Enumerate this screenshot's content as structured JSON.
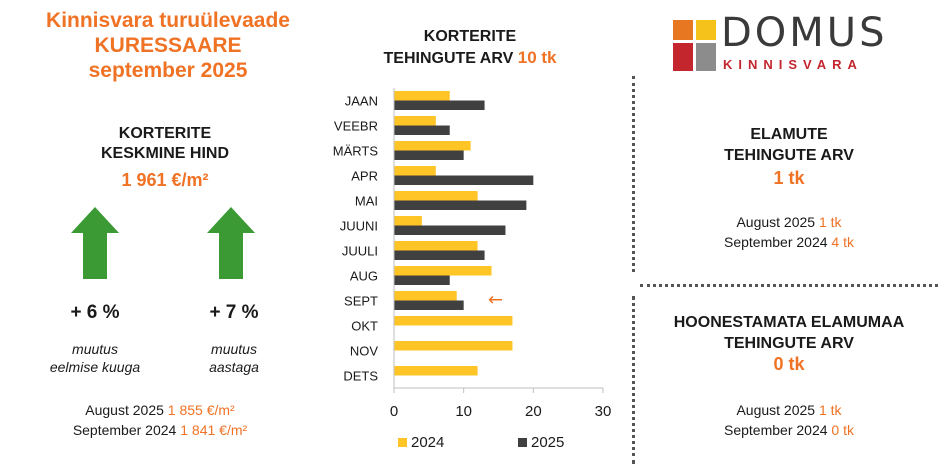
{
  "title": {
    "line1": "Kinnisvara turuülevaade",
    "line2": "KURESSAARE",
    "line3": "september 2025"
  },
  "apartment_price": {
    "heading_line1": "KORTERITE",
    "heading_line2": "KESKMINE HIND",
    "value": "1 961 €/m²",
    "month_change": "+ 6 %",
    "month_change_fraction": 0.06,
    "month_note_line1": "muutus",
    "month_note_line2": "eelmise kuuga",
    "year_change": "+ 7 %",
    "year_change_fraction": 0.07,
    "year_note_line1": "muutus",
    "year_note_line2": "aastaga",
    "compare": [
      {
        "label": "August 2025",
        "value": "1 855 €/m²"
      },
      {
        "label": "September 2024",
        "value": "1 841 €/m²"
      }
    ]
  },
  "chart_title": {
    "line1": "KORTERITE",
    "line2": "TEHINGUTE ARV",
    "count": "10 tk"
  },
  "logo": {
    "word": "DOMUS",
    "sub": "KINNISVARA"
  },
  "houses": {
    "heading_line1": "ELAMUTE",
    "heading_line2": "TEHINGUTE ARV",
    "value": "1 tk",
    "compare": [
      {
        "label": "August 2025",
        "value": "1 tk"
      },
      {
        "label": "September 2024",
        "value": "4 tk"
      }
    ]
  },
  "land": {
    "heading_line1": "HOONESTAMATA ELAMUMAA",
    "heading_line2": "TEHINGUTE ARV",
    "value": "0 tk",
    "compare": [
      {
        "label": "August 2025",
        "value": "1 tk"
      },
      {
        "label": "September 2024",
        "value": "0 tk"
      }
    ]
  },
  "colors": {
    "accent": "#F07224",
    "series_2024": "#FFC425",
    "series_2025": "#404040",
    "arrow": "#3C9A35"
  },
  "chart_data": {
    "type": "bar",
    "orientation": "horizontal",
    "categories": [
      "JAAN",
      "VEEBR",
      "MÄRTS",
      "APR",
      "MAI",
      "JUUNI",
      "JUULI",
      "AUG",
      "SEPT",
      "OKT",
      "NOV",
      "DETS"
    ],
    "series": [
      {
        "name": "2024",
        "values": [
          8,
          6,
          11,
          6,
          12,
          4,
          12,
          14,
          9,
          17,
          17,
          12
        ]
      },
      {
        "name": "2025",
        "values": [
          13,
          8,
          10,
          20,
          19,
          16,
          13,
          8,
          10,
          null,
          null,
          null
        ]
      }
    ],
    "xlim": [
      0,
      30
    ],
    "xticks": [
      0,
      10,
      20,
      30
    ],
    "grid": false,
    "legend_position": "bottom",
    "highlight_category": "SEPT",
    "highlight_marker": "←"
  }
}
